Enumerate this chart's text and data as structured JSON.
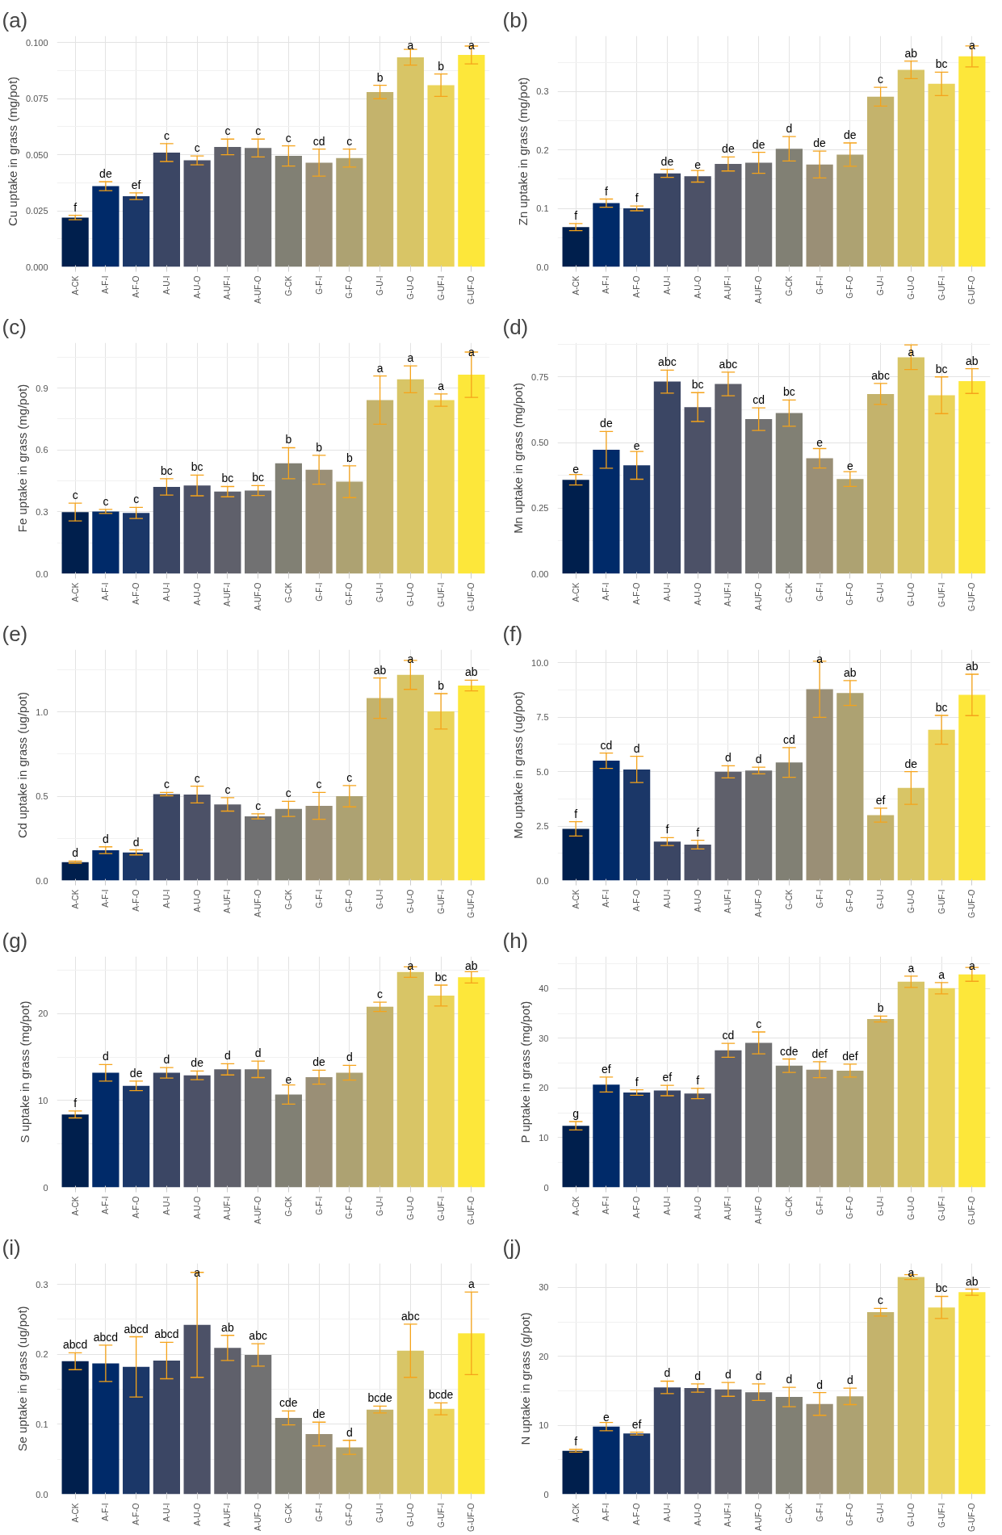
{
  "chart_data": [
    {
      "type": "bar",
      "title": "(a)",
      "ylabel": "Cu uptake in grass (mg/pot)",
      "grid": true,
      "categories": [
        "A-CK",
        "A-F-I",
        "A-F-O",
        "A-U-I",
        "A-U-O",
        "A-UF-I",
        "A-UF-O",
        "G-CK",
        "G-F-I",
        "G-F-O",
        "G-U-I",
        "G-U-O",
        "G-UF-I",
        "G-UF-O"
      ],
      "colors": [
        "#001f4d",
        "#002a69",
        "#1b3768",
        "#3b4664",
        "#4c5167",
        "#5f606b",
        "#717172",
        "#818074",
        "#9a8f76",
        "#ada272",
        "#c4b36c",
        "#d8c566",
        "#ebd45a",
        "#fde73a"
      ],
      "values": [
        0.022,
        0.036,
        0.0315,
        0.051,
        0.0475,
        0.0535,
        0.053,
        0.0495,
        0.0465,
        0.0485,
        0.078,
        0.0935,
        0.081,
        0.0945
      ],
      "errors": [
        0.001,
        0.002,
        0.0015,
        0.004,
        0.002,
        0.0035,
        0.004,
        0.0045,
        0.006,
        0.004,
        0.003,
        0.0035,
        0.005,
        0.004
      ],
      "ylim": [
        0,
        0.103
      ],
      "yticks": [
        {
          "value": 0,
          "label": "0.000"
        },
        {
          "value": 0.025,
          "label": "0.025"
        },
        {
          "value": 0.05,
          "label": "0.050"
        },
        {
          "value": 0.075,
          "label": "0.075"
        },
        {
          "value": 0.1,
          "label": "0.100"
        }
      ],
      "annotations": [
        "f",
        "de",
        "ef",
        "c",
        "c",
        "c",
        "c",
        "c",
        "cd",
        "c",
        "b",
        "a",
        "b",
        "a"
      ]
    },
    {
      "type": "bar",
      "title": "(b)",
      "ylabel": "Zn uptake in grass (mg/pot)",
      "grid": true,
      "categories": [
        "A-CK",
        "A-F-I",
        "A-F-O",
        "A-U-I",
        "A-U-O",
        "A-UF-I",
        "A-UF-O",
        "G-CK",
        "G-F-I",
        "G-F-O",
        "G-U-I",
        "G-U-O",
        "G-UF-I",
        "G-UF-O"
      ],
      "colors": [
        "#001f4d",
        "#002a69",
        "#1b3768",
        "#3b4664",
        "#4c5167",
        "#5f606b",
        "#717172",
        "#818074",
        "#9a8f76",
        "#ada272",
        "#c4b36c",
        "#d8c566",
        "#ebd45a",
        "#fde73a"
      ],
      "values": [
        0.068,
        0.109,
        0.1,
        0.16,
        0.155,
        0.176,
        0.178,
        0.202,
        0.175,
        0.192,
        0.291,
        0.337,
        0.313,
        0.36
      ],
      "errors": [
        0.006,
        0.007,
        0.004,
        0.007,
        0.01,
        0.012,
        0.018,
        0.021,
        0.023,
        0.02,
        0.016,
        0.015,
        0.02,
        0.018
      ],
      "ylim": [
        0,
        0.395
      ],
      "yticks": [
        {
          "value": 0,
          "label": "0.0"
        },
        {
          "value": 0.1,
          "label": "0.1"
        },
        {
          "value": 0.2,
          "label": "0.2"
        },
        {
          "value": 0.3,
          "label": "0.3"
        }
      ],
      "annotations": [
        "f",
        "f",
        "f",
        "de",
        "e",
        "de",
        "de",
        "d",
        "de",
        "de",
        "c",
        "ab",
        "bc",
        "a"
      ]
    },
    {
      "type": "bar",
      "title": "(c)",
      "ylabel": "Fe uptake in grass (mg/pot)",
      "grid": true,
      "categories": [
        "A-CK",
        "A-F-I",
        "A-F-O",
        "A-U-I",
        "A-U-O",
        "A-UF-I",
        "A-UF-O",
        "G-CK",
        "G-F-I",
        "G-F-O",
        "G-U-I",
        "G-U-O",
        "G-UF-I",
        "G-UF-O"
      ],
      "colors": [
        "#001f4d",
        "#002a69",
        "#1b3768",
        "#3b4664",
        "#4c5167",
        "#5f606b",
        "#717172",
        "#818074",
        "#9a8f76",
        "#ada272",
        "#c4b36c",
        "#d8c566",
        "#ebd45a",
        "#fde73a"
      ],
      "values": [
        0.299,
        0.302,
        0.295,
        0.421,
        0.428,
        0.398,
        0.403,
        0.536,
        0.504,
        0.446,
        0.842,
        0.943,
        0.842,
        0.965
      ],
      "errors": [
        0.043,
        0.01,
        0.027,
        0.04,
        0.05,
        0.025,
        0.024,
        0.075,
        0.07,
        0.077,
        0.117,
        0.065,
        0.03,
        0.11
      ],
      "ylim": [
        0,
        1.12
      ],
      "yticks": [
        {
          "value": 0,
          "label": "0.0"
        },
        {
          "value": 0.3,
          "label": "0.3"
        },
        {
          "value": 0.6,
          "label": "0.6"
        },
        {
          "value": 0.9,
          "label": "0.9"
        }
      ],
      "annotations": [
        "c",
        "c",
        "c",
        "bc",
        "bc",
        "bc",
        "bc",
        "b",
        "b",
        "b",
        "a",
        "a",
        "a",
        "a"
      ]
    },
    {
      "type": "bar",
      "title": "(d)",
      "ylabel": "Mn uptake in grass (mg/pot)",
      "grid": true,
      "categories": [
        "A-CK",
        "A-F-I",
        "A-F-O",
        "A-U-I",
        "A-U-O",
        "A-UF-I",
        "A-UF-O",
        "G-CK",
        "G-F-I",
        "G-F-O",
        "G-U-I",
        "G-U-O",
        "G-UF-I",
        "G-UF-O"
      ],
      "colors": [
        "#001f4d",
        "#002a69",
        "#1b3768",
        "#3b4664",
        "#4c5167",
        "#5f606b",
        "#717172",
        "#818074",
        "#9a8f76",
        "#ada272",
        "#c4b36c",
        "#d8c566",
        "#ebd45a",
        "#fde73a"
      ],
      "values": [
        0.358,
        0.472,
        0.413,
        0.732,
        0.635,
        0.723,
        0.589,
        0.612,
        0.44,
        0.361,
        0.685,
        0.825,
        0.68,
        0.734
      ],
      "errors": [
        0.02,
        0.07,
        0.053,
        0.044,
        0.055,
        0.045,
        0.043,
        0.05,
        0.037,
        0.028,
        0.04,
        0.047,
        0.07,
        0.047
      ],
      "ylim": [
        0,
        0.88
      ],
      "yticks": [
        {
          "value": 0,
          "label": "0.00"
        },
        {
          "value": 0.25,
          "label": "0.25"
        },
        {
          "value": 0.5,
          "label": "0.50"
        },
        {
          "value": 0.75,
          "label": "0.75"
        }
      ],
      "annotations": [
        "e",
        "de",
        "e",
        "abc",
        "bc",
        "abc",
        "cd",
        "bc",
        "e",
        "e",
        "abc",
        "a",
        "bc",
        "ab"
      ]
    },
    {
      "type": "bar",
      "title": "(e)",
      "ylabel": "Cd uptake in grass (ug/pot)",
      "grid": true,
      "categories": [
        "A-CK",
        "A-F-I",
        "A-F-O",
        "A-U-I",
        "A-U-O",
        "A-UF-I",
        "A-UF-O",
        "G-CK",
        "G-F-I",
        "G-F-O",
        "G-U-I",
        "G-U-O",
        "G-UF-I",
        "G-UF-O"
      ],
      "colors": [
        "#001f4d",
        "#002a69",
        "#1b3768",
        "#3b4664",
        "#4c5167",
        "#5f606b",
        "#717172",
        "#818074",
        "#9a8f76",
        "#ada272",
        "#c4b36c",
        "#d8c566",
        "#ebd45a",
        "#fde73a"
      ],
      "values": [
        0.109,
        0.18,
        0.167,
        0.513,
        0.51,
        0.452,
        0.381,
        0.425,
        0.443,
        0.5,
        1.082,
        1.22,
        1.004,
        1.157
      ],
      "errors": [
        0.006,
        0.02,
        0.015,
        0.01,
        0.05,
        0.04,
        0.015,
        0.045,
        0.08,
        0.063,
        0.12,
        0.086,
        0.105,
        0.032
      ],
      "ylim": [
        0,
        1.37
      ],
      "yticks": [
        {
          "value": 0,
          "label": "0.0"
        },
        {
          "value": 0.5,
          "label": "0.5"
        },
        {
          "value": 1,
          "label": "1.0"
        }
      ],
      "annotations": [
        "d",
        "d",
        "d",
        "c",
        "c",
        "c",
        "c",
        "c",
        "c",
        "c",
        "ab",
        "a",
        "b",
        "ab"
      ]
    },
    {
      "type": "bar",
      "title": "(f)",
      "ylabel": "Mo uptake in grass (ug/pot)",
      "grid": true,
      "categories": [
        "A-CK",
        "A-F-I",
        "A-F-O",
        "A-U-I",
        "A-U-O",
        "A-UF-I",
        "A-UF-O",
        "G-CK",
        "G-F-I",
        "G-F-O",
        "G-U-I",
        "G-U-O",
        "G-UF-I",
        "G-UF-O"
      ],
      "colors": [
        "#001f4d",
        "#002a69",
        "#1b3768",
        "#3b4664",
        "#4c5167",
        "#5f606b",
        "#717172",
        "#818074",
        "#9a8f76",
        "#ada272",
        "#c4b36c",
        "#d8c566",
        "#ebd45a",
        "#fde73a"
      ],
      "values": [
        2.37,
        5.5,
        5.1,
        1.79,
        1.65,
        4.99,
        5.05,
        5.42,
        8.78,
        8.61,
        3.0,
        4.25,
        6.92,
        8.52
      ],
      "errors": [
        0.33,
        0.35,
        0.6,
        0.18,
        0.2,
        0.28,
        0.15,
        0.68,
        1.29,
        0.57,
        0.32,
        0.75,
        0.66,
        0.95
      ],
      "ylim": [
        0,
        10.6
      ],
      "yticks": [
        {
          "value": 0,
          "label": "0.0"
        },
        {
          "value": 2.5,
          "label": "2.5"
        },
        {
          "value": 5,
          "label": "5.0"
        },
        {
          "value": 7.5,
          "label": "7.5"
        },
        {
          "value": 10,
          "label": "10.0"
        }
      ],
      "annotations": [
        "f",
        "cd",
        "d",
        "f",
        "f",
        "d",
        "d",
        "cd",
        "a",
        "ab",
        "ef",
        "de",
        "bc",
        "ab"
      ]
    },
    {
      "type": "bar",
      "title": "(g)",
      "ylabel": "S uptake in grass (mg/pot)",
      "grid": true,
      "categories": [
        "A-CK",
        "A-F-I",
        "A-F-O",
        "A-U-I",
        "A-U-O",
        "A-UF-I",
        "A-UF-O",
        "G-CK",
        "G-F-I",
        "G-F-O",
        "G-U-I",
        "G-U-O",
        "G-UF-I",
        "G-UF-O"
      ],
      "colors": [
        "#001f4d",
        "#002a69",
        "#1b3768",
        "#3b4664",
        "#4c5167",
        "#5f606b",
        "#717172",
        "#818074",
        "#9a8f76",
        "#ada272",
        "#c4b36c",
        "#d8c566",
        "#ebd45a",
        "#fde73a"
      ],
      "values": [
        8.4,
        13.2,
        11.7,
        13.2,
        12.9,
        13.6,
        13.6,
        10.7,
        12.7,
        13.2,
        20.8,
        24.8,
        22.1,
        24.2
      ],
      "errors": [
        0.4,
        0.95,
        0.55,
        0.6,
        0.5,
        0.65,
        0.95,
        1.1,
        0.8,
        0.85,
        0.53,
        0.6,
        1.2,
        0.65
      ],
      "ylim": [
        0,
        26.6
      ],
      "yticks": [
        0,
        10,
        20
      ],
      "annotations": [
        "f",
        "d",
        "de",
        "d",
        "de",
        "d",
        "d",
        "e",
        "de",
        "d",
        "c",
        "a",
        "bc",
        "ab"
      ]
    },
    {
      "type": "bar",
      "title": "(h)",
      "ylabel": "P uptake in grass (mg/pot)",
      "grid": true,
      "categories": [
        "A-CK",
        "A-F-I",
        "A-F-O",
        "A-U-I",
        "A-U-O",
        "A-UF-I",
        "A-UF-O",
        "G-CK",
        "G-F-I",
        "G-F-O",
        "G-U-I",
        "G-U-O",
        "G-UF-I",
        "G-UF-O"
      ],
      "colors": [
        "#001f4d",
        "#002a69",
        "#1b3768",
        "#3b4664",
        "#4c5167",
        "#5f606b",
        "#717172",
        "#818074",
        "#9a8f76",
        "#ada272",
        "#c4b36c",
        "#d8c566",
        "#ebd45a",
        "#fde73a"
      ],
      "values": [
        12.4,
        20.7,
        19.1,
        19.5,
        18.9,
        27.6,
        29.1,
        24.5,
        23.7,
        23.5,
        33.9,
        41.4,
        40.1,
        42.9
      ],
      "errors": [
        0.85,
        1.5,
        0.55,
        1.05,
        1.05,
        1.4,
        2.2,
        1.35,
        1.6,
        1.3,
        0.6,
        1.15,
        1.15,
        1.4
      ],
      "ylim": [
        0,
        46.5
      ],
      "yticks": [
        0,
        10,
        20,
        30,
        40
      ],
      "annotations": [
        "g",
        "ef",
        "f",
        "ef",
        "f",
        "cd",
        "c",
        "cde",
        "def",
        "def",
        "b",
        "a",
        "a",
        "a"
      ]
    },
    {
      "type": "bar",
      "title": "(i)",
      "ylabel": "Se uptake in grass (ug/pot)",
      "grid": true,
      "categories": [
        "A-CK",
        "A-F-I",
        "A-F-O",
        "A-U-I",
        "A-U-O",
        "A-UF-I",
        "A-UF-O",
        "G-CK",
        "G-F-I",
        "G-F-O",
        "G-U-I",
        "G-U-O",
        "G-UF-I",
        "G-UF-O"
      ],
      "colors": [
        "#001f4d",
        "#002a69",
        "#1b3768",
        "#3b4664",
        "#4c5167",
        "#5f606b",
        "#717172",
        "#818074",
        "#9a8f76",
        "#ada272",
        "#c4b36c",
        "#d8c566",
        "#ebd45a",
        "#fde73a"
      ],
      "values": [
        0.19,
        0.187,
        0.182,
        0.191,
        0.242,
        0.209,
        0.199,
        0.109,
        0.086,
        0.067,
        0.121,
        0.205,
        0.122,
        0.23
      ],
      "errors": [
        0.012,
        0.026,
        0.043,
        0.026,
        0.075,
        0.018,
        0.016,
        0.01,
        0.017,
        0.01,
        0.005,
        0.038,
        0.0085,
        0.059
      ],
      "ylim": [
        0,
        0.33
      ],
      "yticks": [
        {
          "value": 0,
          "label": "0.0"
        },
        {
          "value": 0.1,
          "label": "0.1"
        },
        {
          "value": 0.2,
          "label": "0.2"
        },
        {
          "value": 0.3,
          "label": "0.3"
        }
      ],
      "annotations": [
        "abcd",
        "abcd",
        "abcd",
        "abcd",
        "a",
        "ab",
        "abc",
        "cde",
        "de",
        "d",
        "bcde",
        "abc",
        "bcde",
        "a"
      ]
    },
    {
      "type": "bar",
      "title": "(j)",
      "ylabel": "N uptake in grass (g/pot)",
      "grid": true,
      "categories": [
        "A-CK",
        "A-F-I",
        "A-F-O",
        "A-U-I",
        "A-U-O",
        "A-UF-I",
        "A-UF-O",
        "G-CK",
        "G-F-I",
        "G-F-O",
        "G-U-I",
        "G-U-O",
        "G-UF-I",
        "G-UF-O"
      ],
      "colors": [
        "#001f4d",
        "#002a69",
        "#1b3768",
        "#3b4664",
        "#4c5167",
        "#5f606b",
        "#717172",
        "#818074",
        "#9a8f76",
        "#ada272",
        "#c4b36c",
        "#d8c566",
        "#ebd45a",
        "#fde73a"
      ],
      "values": [
        6.3,
        9.8,
        8.8,
        15.5,
        15.4,
        15.2,
        14.8,
        14.1,
        13.1,
        14.2,
        26.4,
        31.5,
        27.1,
        29.3
      ],
      "errors": [
        0.2,
        0.6,
        0.2,
        0.9,
        0.6,
        1.0,
        1.2,
        1.4,
        1.65,
        1.2,
        0.55,
        0.35,
        1.6,
        0.45
      ],
      "ylim": [
        0,
        33.5
      ],
      "yticks": [
        0,
        10,
        20,
        30
      ],
      "annotations": [
        "f",
        "e",
        "ef",
        "d",
        "d",
        "d",
        "d",
        "d",
        "d",
        "d",
        "c",
        "a",
        "bc",
        "ab"
      ]
    }
  ]
}
